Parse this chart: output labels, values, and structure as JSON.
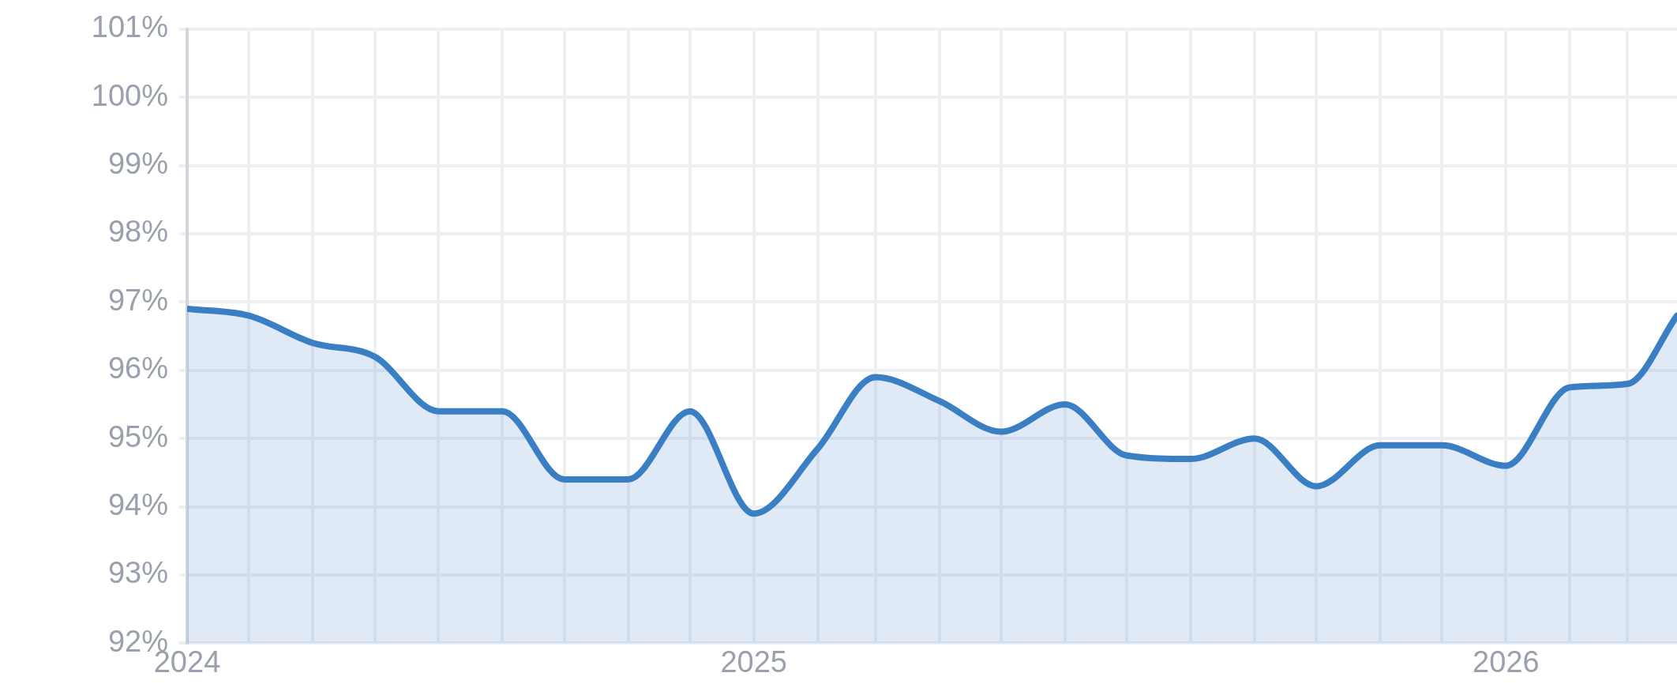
{
  "chart_data": {
    "type": "area",
    "grid": true,
    "marker": "none",
    "legend": false,
    "x": [
      "2024-04",
      "2024-05",
      "2024-06",
      "2024-07",
      "2024-08",
      "2024-09",
      "2024-10",
      "2024-11",
      "2024-12",
      "2025-01",
      "2025-02",
      "2025-03",
      "2025-04",
      "2025-05",
      "2025-06",
      "2025-07",
      "2025-08",
      "2025-09",
      "2025-10",
      "2025-11",
      "2025-12",
      "2026-01",
      "2026-02",
      "2026-03",
      "2026-03-25"
    ],
    "series": [
      {
        "color": "#3a7fc4",
        "values": [
          96.9,
          96.8,
          96.4,
          96.2,
          95.4,
          95.4,
          94.4,
          94.4,
          95.4,
          93.9,
          94.85,
          95.9,
          95.55,
          95.1,
          95.5,
          94.75,
          94.7,
          95.0,
          94.3,
          94.9,
          94.9,
          94.6,
          95.75,
          95.8,
          96.8
        ]
      }
    ],
    "xlim": [
      "2024-04",
      "2026-03-25"
    ],
    "xticks": [
      {
        "value": "2024-04",
        "label": "2024"
      },
      {
        "value": "2024-05",
        "label": null
      },
      {
        "value": "2024-06",
        "label": null
      },
      {
        "value": "2024-07",
        "label": null
      },
      {
        "value": "2024-08",
        "label": null
      },
      {
        "value": "2024-09",
        "label": null
      },
      {
        "value": "2024-10",
        "label": null
      },
      {
        "value": "2024-11",
        "label": null
      },
      {
        "value": "2024-12",
        "label": null
      },
      {
        "value": "2025-01",
        "label": "2025"
      },
      {
        "value": "2025-02",
        "label": null
      },
      {
        "value": "2025-03",
        "label": null
      },
      {
        "value": "2025-04",
        "label": null
      },
      {
        "value": "2025-05",
        "label": null
      },
      {
        "value": "2025-06",
        "label": null
      },
      {
        "value": "2025-07",
        "label": null
      },
      {
        "value": "2025-08",
        "label": null
      },
      {
        "value": "2025-09",
        "label": null
      },
      {
        "value": "2025-10",
        "label": null
      },
      {
        "value": "2025-11",
        "label": null
      },
      {
        "value": "2025-12",
        "label": null
      },
      {
        "value": "2026-01",
        "label": "2026"
      },
      {
        "value": "2026-02",
        "label": null
      },
      {
        "value": "2026-03",
        "label": null
      }
    ],
    "ylim": [
      92,
      101
    ],
    "yticks": [
      {
        "value": 92,
        "label": "92%"
      },
      {
        "value": 93,
        "label": "93%"
      },
      {
        "value": 94,
        "label": "94%"
      },
      {
        "value": 95,
        "label": "95%"
      },
      {
        "value": 96,
        "label": "96%"
      },
      {
        "value": 97,
        "label": "97%"
      },
      {
        "value": 98,
        "label": "98%"
      },
      {
        "value": 99,
        "label": "99%"
      },
      {
        "value": 100,
        "label": "100%"
      },
      {
        "value": 101,
        "label": "101%"
      }
    ]
  }
}
